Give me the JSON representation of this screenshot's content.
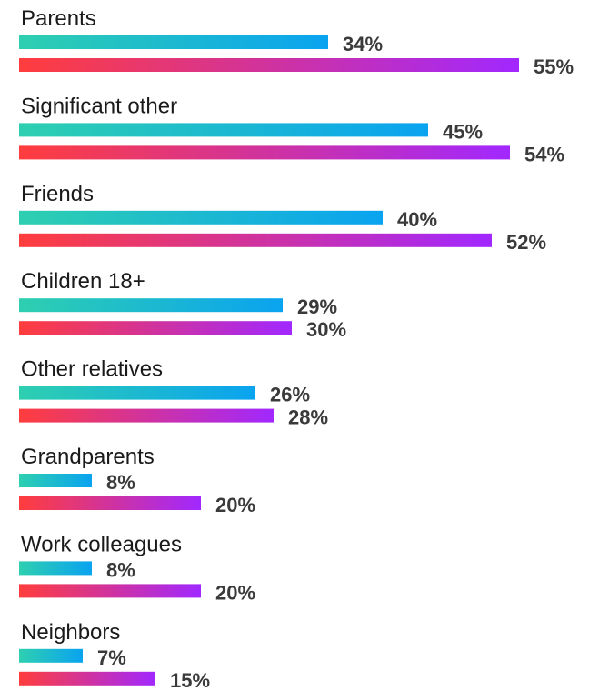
{
  "chart_data": {
    "type": "bar",
    "orientation": "horizontal",
    "categories": [
      "Parents",
      "Significant other",
      "Friends",
      "Children 18+",
      "Other relatives",
      "Grandparents",
      "Work colleagues",
      "Neighbors"
    ],
    "series": [
      {
        "values": [
          34,
          45,
          40,
          29,
          26,
          8,
          8,
          7
        ],
        "gradient": [
          "#2ecfb0",
          "#0aa3f0"
        ]
      },
      {
        "values": [
          55,
          54,
          52,
          30,
          28,
          20,
          20,
          15
        ],
        "gradient": [
          "#ff3d3d",
          "#a128ff"
        ]
      }
    ],
    "value_suffix": "%",
    "title": "",
    "xlabel": "",
    "ylabel": "",
    "grid": false,
    "legend": "none"
  }
}
